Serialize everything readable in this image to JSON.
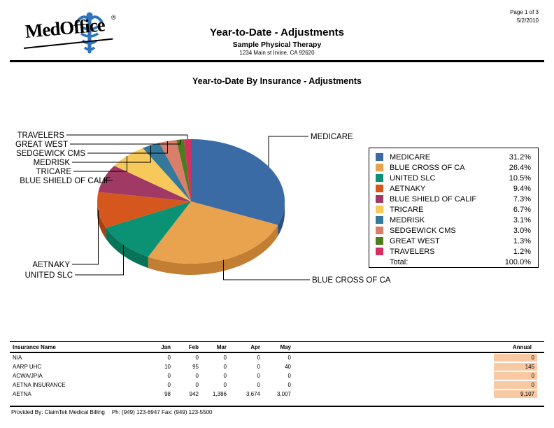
{
  "header": {
    "logo_text": "MedOffice",
    "logo_reg": "®",
    "title": "Year-to-Date - Adjustments",
    "subtitle": "Sample Physical Therapy",
    "address": "1234 Main st Irvine, CA  92620",
    "page_label": "Page 1 of 3",
    "date": "5/2/2010"
  },
  "chart_data": {
    "type": "pie",
    "title": "Year-to-Date By Insurance - Adjustments",
    "legend_position": "right",
    "total_label": "Total:",
    "total_value": "100.0%",
    "slices": [
      {
        "label": "MEDICARE",
        "value": 31.2,
        "pct_label": "31.2%",
        "color": "#3A6BA5",
        "side_color": "#2C5180"
      },
      {
        "label": "BLUE CROSS OF CA",
        "value": 26.4,
        "pct_label": "26.4%",
        "color": "#E9A24E",
        "side_color": "#C27E33"
      },
      {
        "label": "UNITED SLC",
        "value": 10.5,
        "pct_label": "10.5%",
        "color": "#0B9173",
        "side_color": "#087356"
      },
      {
        "label": "AETNAKY",
        "value": 9.4,
        "pct_label": "9.4%",
        "color": "#D5571E",
        "side_color": "#A84214"
      },
      {
        "label": "BLUE SHIELD OF CALIF",
        "value": 7.3,
        "pct_label": "7.3%",
        "color": "#A03A64",
        "side_color": "#7C2C4D"
      },
      {
        "label": "TRICARE",
        "value": 6.7,
        "pct_label": "6.7%",
        "color": "#F7C95B",
        "side_color": "#CDA13F"
      },
      {
        "label": "MEDRISK",
        "value": 3.1,
        "pct_label": "3.1%",
        "color": "#35789B",
        "side_color": "#285E7A"
      },
      {
        "label": "SEDGEWICK CMS",
        "value": 3.0,
        "pct_label": "3.0%",
        "color": "#D87E6B",
        "side_color": "#B06252"
      },
      {
        "label": "GREAT WEST",
        "value": 1.3,
        "pct_label": "1.3%",
        "color": "#4D7C1F",
        "side_color": "#3A5F15"
      },
      {
        "label": "TRAVELERS",
        "value": 1.2,
        "pct_label": "1.2%",
        "color": "#D13060",
        "side_color": "#A62449"
      }
    ]
  },
  "table": {
    "headers": [
      "Insurance Name",
      "Jan",
      "Feb",
      "Mar",
      "Apr",
      "May",
      "Annual"
    ],
    "highlight_color": "#F9C9A3",
    "rows": [
      {
        "name": "N/A",
        "values": [
          "0",
          "0",
          "0",
          "0",
          "0"
        ],
        "annual": "0"
      },
      {
        "name": "AARP UHC",
        "values": [
          "10",
          "95",
          "0",
          "0",
          "40"
        ],
        "annual": "145"
      },
      {
        "name": "ACWA/JPIA",
        "values": [
          "0",
          "0",
          "0",
          "0",
          "0"
        ],
        "annual": "0"
      },
      {
        "name": "AETNA INSURANCE",
        "values": [
          "0",
          "0",
          "0",
          "0",
          "0"
        ],
        "annual": "0"
      },
      {
        "name": "AETNA",
        "values": [
          "98",
          "942",
          "1,386",
          "3,674",
          "3,007"
        ],
        "annual": "9,107"
      }
    ]
  },
  "footer": {
    "provided": "Provided By: ClaimTek Medical Billing",
    "contact": "Ph: (949) 123-6947 Fax: (949) 123-5500"
  }
}
